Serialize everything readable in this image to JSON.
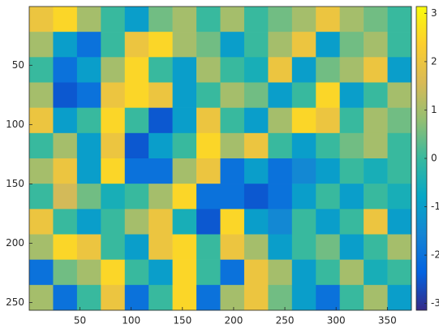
{
  "chart_data": {
    "type": "heatmap",
    "colormap": "parula",
    "xlim": [
      0.5,
      373.5
    ],
    "ylim": [
      0.5,
      256.5
    ],
    "y_reversed": true,
    "xticks": [
      50,
      100,
      150,
      200,
      250,
      300,
      350
    ],
    "yticks": [
      50,
      100,
      150,
      200,
      250
    ],
    "clim": [
      -3.14,
      3.14
    ],
    "cticks": [
      -3,
      -2,
      -1,
      0,
      1,
      2,
      3
    ],
    "z": [
      [
        2,
        2.5,
        1,
        0,
        -1,
        0.5,
        1,
        0,
        1,
        0,
        0.5,
        1,
        2,
        1,
        0.5,
        0
      ],
      [
        1,
        -1,
        -2,
        0,
        2,
        2.5,
        1,
        0.5,
        -1,
        0,
        1,
        2,
        -1,
        0.5,
        1,
        0
      ],
      [
        0,
        -2,
        -1,
        1,
        2.5,
        0,
        -1,
        1,
        0,
        -0.5,
        2,
        -1,
        0.5,
        1,
        2,
        -1
      ],
      [
        1,
        -2.5,
        -2,
        2,
        2.5,
        2,
        -1,
        0,
        1,
        0.5,
        -1,
        0,
        2.5,
        -1,
        0,
        1
      ],
      [
        2,
        -1,
        0,
        2.5,
        0,
        -2.5,
        -1,
        2,
        0,
        -1,
        1,
        2.5,
        2,
        0,
        1,
        0.5
      ],
      [
        0,
        1,
        -1,
        2,
        -2.5,
        -1,
        0,
        2.5,
        1,
        2,
        0,
        -1,
        0,
        0.5,
        1,
        0
      ],
      [
        1,
        2,
        -1,
        2.5,
        -2,
        -2,
        1,
        2,
        -2,
        -1,
        -2,
        -1.5,
        -1,
        0,
        -0.5,
        0
      ],
      [
        0,
        1.5,
        0.5,
        -0.5,
        0,
        1,
        2.5,
        -2,
        -2,
        -2.5,
        -2,
        -1,
        0,
        -1,
        0,
        -0.5
      ],
      [
        2,
        0,
        -1,
        0,
        1,
        2,
        -0.5,
        -2.5,
        2.5,
        -1,
        -1.5,
        0,
        -1,
        0,
        2,
        -1
      ],
      [
        1,
        2.5,
        2,
        0,
        -1,
        2,
        2.5,
        0,
        2,
        1,
        -1,
        0,
        0.5,
        -1,
        0,
        1
      ],
      [
        -2,
        0.5,
        1,
        2.5,
        0,
        -1,
        2.5,
        0,
        -2,
        2,
        1,
        -1,
        0,
        1,
        -0.5,
        0
      ],
      [
        1,
        -2,
        0,
        2,
        -2,
        0,
        2.5,
        -2,
        1,
        2,
        0.5,
        -1,
        -2,
        0,
        1,
        -1
      ]
    ]
  }
}
